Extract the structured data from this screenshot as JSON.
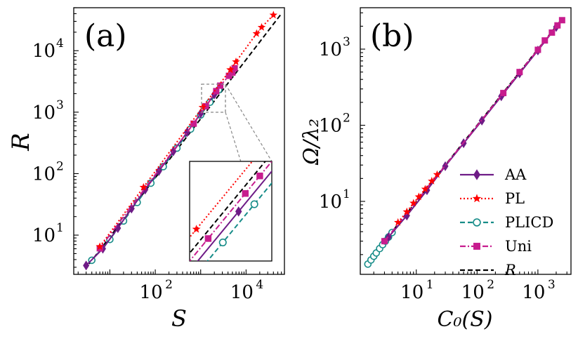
{
  "chart_data": [
    {
      "panel_label": "(a)",
      "type": "line",
      "scale": "log-log",
      "xlabel": "S",
      "ylabel": "R",
      "xlim": [
        1.6,
        70000
      ],
      "ylim": [
        2.3,
        50000
      ],
      "x_ticks": [
        {
          "base": "10",
          "exp": "2",
          "value": 100
        },
        {
          "base": "10",
          "exp": "4",
          "value": 10000
        }
      ],
      "y_ticks": [
        {
          "base": "10",
          "exp": "1",
          "value": 10
        },
        {
          "base": "10",
          "exp": "2",
          "value": 100
        },
        {
          "base": "10",
          "exp": "3",
          "value": 1000
        },
        {
          "base": "10",
          "exp": "4",
          "value": 10000
        }
      ],
      "series": [
        {
          "name": "AA",
          "color": "#6e1b86",
          "marker": "diamond",
          "dash": "solid",
          "x": [
            3,
            7,
            15,
            30,
            60,
            120,
            250,
            500,
            1000,
            2000
          ],
          "y": [
            3.2,
            6,
            13,
            27,
            55,
            110,
            230,
            470,
            950,
            1950
          ]
        },
        {
          "name": "PL",
          "color": "#ff0000",
          "marker": "star",
          "dash": "dot",
          "x": [
            6,
            55,
            1100,
            4500,
            6000,
            17000,
            22000,
            40000
          ],
          "y": [
            6.5,
            60,
            1200,
            4900,
            6600,
            19000,
            24000,
            38000
          ]
        },
        {
          "name": "PLICD",
          "color": "#168c88",
          "marker": "circle-open",
          "dash": "dash",
          "x": [
            4,
            10,
            20,
            40,
            80,
            150,
            300,
            600,
            1000,
            1600,
            2500
          ],
          "y": [
            3.9,
            8.5,
            17,
            34,
            70,
            130,
            260,
            530,
            900,
            1450,
            2300
          ]
        },
        {
          "name": "Uni",
          "color": "#c71c8e",
          "marker": "square",
          "dash": "dashdot",
          "x": [
            6,
            700,
            1300,
            2200,
            2700,
            4200,
            5000,
            5600
          ],
          "y": [
            6.1,
            650,
            1250,
            2200,
            2700,
            3900,
            4400,
            5200
          ]
        },
        {
          "name": "R",
          "color": "#000000",
          "marker": "none",
          "dash": "dash",
          "x": [
            3.5,
            60000
          ],
          "y": [
            3.4,
            40000
          ]
        }
      ],
      "inset": {
        "zoom_x": [
          1000,
          3200
        ],
        "zoom_y": [
          1000,
          3200
        ]
      }
    },
    {
      "panel_label": "(b)",
      "type": "line",
      "scale": "log-log",
      "xlabel": "C₀(S)",
      "ylabel": "Ω/λ₂",
      "xlim": [
        1.2,
        3500
      ],
      "ylim": [
        1.1,
        3500
      ],
      "x_ticks": [
        {
          "base": "10",
          "exp": "1",
          "value": 10
        },
        {
          "base": "10",
          "exp": "2",
          "value": 100
        },
        {
          "base": "10",
          "exp": "3",
          "value": 1000
        }
      ],
      "y_ticks": [
        {
          "base": "10",
          "exp": "1",
          "value": 10
        },
        {
          "base": "10",
          "exp": "2",
          "value": 100
        },
        {
          "base": "10",
          "exp": "3",
          "value": 1000
        }
      ],
      "series": [
        {
          "name": "AA",
          "color": "#6e1b86",
          "marker": "diamond",
          "dash": "solid",
          "x": [
            3.5,
            7,
            15,
            30,
            60,
            120,
            250,
            500,
            1000,
            2000
          ],
          "y": [
            3.4,
            6.5,
            14,
            29,
            58,
            115,
            240,
            480,
            960,
            1950
          ]
        },
        {
          "name": "PL",
          "color": "#ff0000",
          "marker": "star",
          "dash": "dot",
          "x": [
            5,
            7,
            9,
            11,
            14,
            18,
            22
          ],
          "y": [
            5.3,
            7.3,
            9.5,
            11.5,
            14.5,
            18.5,
            22.5
          ]
        },
        {
          "name": "PLICD",
          "color": "#168c88",
          "marker": "circle-open",
          "dash": "dash",
          "x": [
            1.6,
            1.8,
            2.0,
            2.2,
            2.5,
            2.8,
            3.1,
            3.5,
            4.0
          ],
          "y": [
            1.5,
            1.7,
            1.9,
            2.1,
            2.4,
            2.7,
            3.0,
            3.4,
            3.9
          ]
        },
        {
          "name": "Uni",
          "color": "#c71c8e",
          "marker": "square",
          "dash": "dashdot",
          "x": [
            3,
            270,
            500,
            1000,
            1300,
            1700,
            2100,
            2500
          ],
          "y": [
            3,
            265,
            500,
            980,
            1300,
            1650,
            2050,
            2400
          ]
        },
        {
          "name": "R",
          "color": "#000000",
          "marker": "none",
          "dash": "dash",
          "x": [
            3,
            2600
          ],
          "y": [
            3,
            2600
          ]
        }
      ]
    }
  ],
  "legend": [
    {
      "label": "AA",
      "color": "#6e1b86",
      "marker": "diamond",
      "dash": "solid"
    },
    {
      "label": "PL",
      "color": "#ff0000",
      "marker": "star",
      "dash": "dot"
    },
    {
      "label": "PLICD",
      "color": "#168c88",
      "marker": "circle-open",
      "dash": "dash"
    },
    {
      "label": "Uni",
      "color": "#c71c8e",
      "marker": "square",
      "dash": "dashdot"
    },
    {
      "label": "R",
      "color": "#000000",
      "marker": "none",
      "dash": "dash"
    }
  ]
}
